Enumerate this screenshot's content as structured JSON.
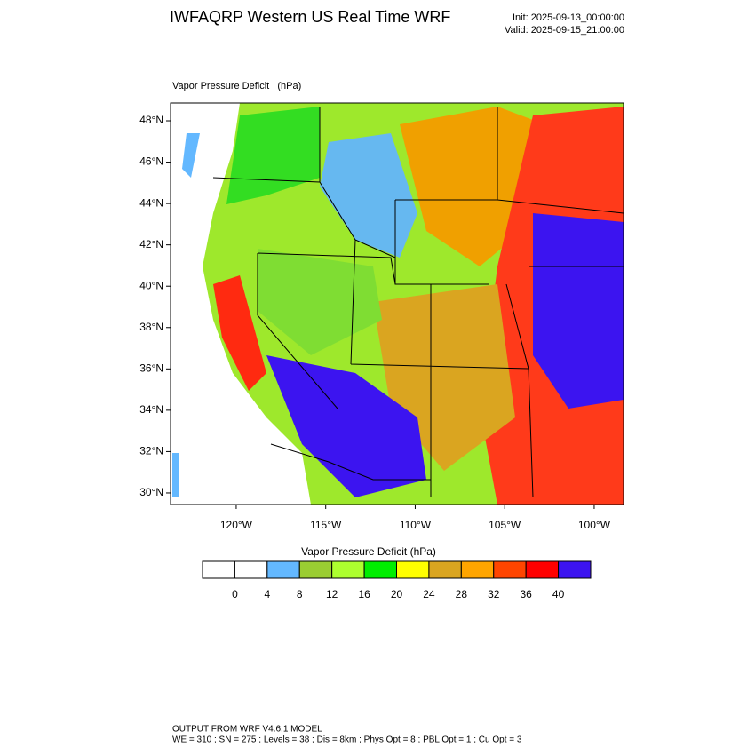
{
  "header": {
    "title": "IWFAQRP Western US Real Time WRF",
    "init": "Init: 2025-09-13_00:00:00",
    "valid": "Valid: 2025-09-15_21:00:00"
  },
  "map": {
    "subtitle": "Vapor Pressure Deficit   (hPa)",
    "lat_range": [
      29.44,
      48.86
    ],
    "lon_range": [
      -123.67,
      -98.36
    ],
    "lat_ticks": [
      {
        "value": 30,
        "label": "30°N"
      },
      {
        "value": 32,
        "label": "32°N"
      },
      {
        "value": 34,
        "label": "34°N"
      },
      {
        "value": 36,
        "label": "36°N"
      },
      {
        "value": 38,
        "label": "38°N"
      },
      {
        "value": 40,
        "label": "40°N"
      },
      {
        "value": 42,
        "label": "42°N"
      },
      {
        "value": 44,
        "label": "44°N"
      },
      {
        "value": 46,
        "label": "46°N"
      },
      {
        "value": 48,
        "label": "48°N"
      }
    ],
    "lon_ticks": [
      {
        "value": -120,
        "label": "120°W"
      },
      {
        "value": -115,
        "label": "115°W"
      },
      {
        "value": -110,
        "label": "110°W"
      },
      {
        "value": -105,
        "label": "105°W"
      },
      {
        "value": -100,
        "label": "100°W"
      }
    ]
  },
  "colorbar": {
    "title": "Vapor Pressure Deficit  (hPa)",
    "levels": [
      0,
      4,
      8,
      12,
      16,
      20,
      24,
      28,
      32,
      36,
      40
    ],
    "colors": [
      "#ffffff",
      "#ffffff",
      "#63b8ff",
      "#9acd32",
      "#adff2f",
      "#00ee00",
      "#ffff00",
      "#daa520",
      "#ffa500",
      "#ff4500",
      "#ff0000",
      "#3c14f0"
    ]
  },
  "footer": {
    "line1": "OUTPUT FROM WRF V4.6.1 MODEL",
    "line2": "WE = 310 ; SN = 275 ; Levels = 38 ; Dis = 8km ; Phys Opt = 8 ; PBL Opt = 1 ; Cu Opt = 3"
  }
}
